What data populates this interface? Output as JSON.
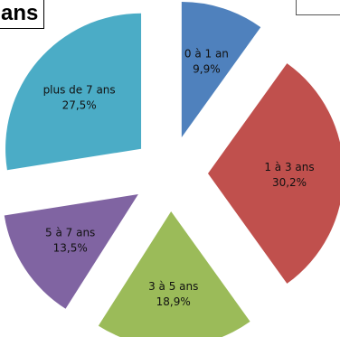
{
  "title": "ans",
  "chart_data": {
    "type": "pie",
    "exploded": true,
    "slices": [
      {
        "label": "0 à 1 an",
        "value": 9.9,
        "value_label": "9,9%",
        "color": "#4f81bd"
      },
      {
        "label": "1 à 3 ans",
        "value": 30.2,
        "value_label": "30,2%",
        "color": "#c0504d"
      },
      {
        "label": "3 à 5 ans",
        "value": 18.9,
        "value_label": "18,9%",
        "color": "#9bbb59"
      },
      {
        "label": "5 à 7 ans",
        "value": 13.5,
        "value_label": "13,5%",
        "color": "#8064a2"
      },
      {
        "label": "plus de 7 ans",
        "value": 27.5,
        "value_label": "27,5%",
        "color": "#4bacc6"
      }
    ]
  }
}
